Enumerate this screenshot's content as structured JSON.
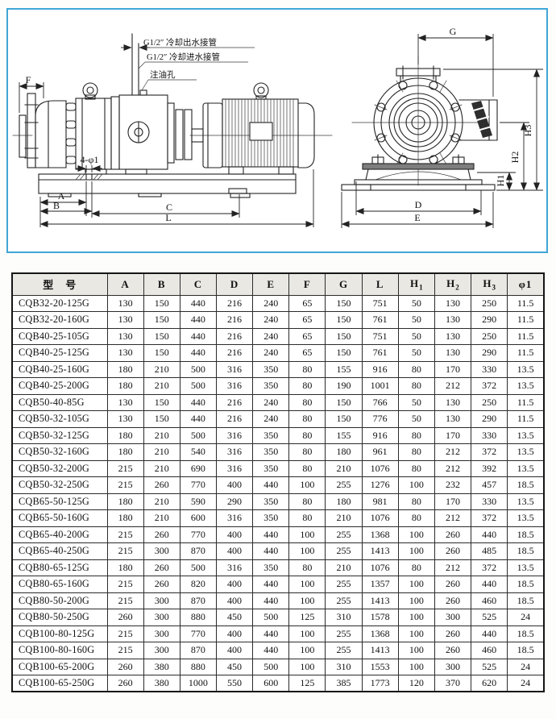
{
  "diagram": {
    "border_color": "#3fa6d6",
    "annotations": {
      "cooling_outlet": "G1/2″ 冷却出水接管",
      "cooling_inlet": "G1/2″ 冷却进水接管",
      "oil_fill_hole": "注油孔",
      "bolt_holes": "4-φ1"
    },
    "dims": {
      "f": "F",
      "a": "A",
      "b": "B",
      "c": "C",
      "l": "L",
      "g": "G",
      "d": "D",
      "e": "E",
      "h1": "H1",
      "h2": "H2",
      "h3": "H3"
    }
  },
  "table": {
    "headers": [
      {
        "text": "型　号"
      },
      {
        "text": "A"
      },
      {
        "text": "B"
      },
      {
        "text": "C"
      },
      {
        "text": "D"
      },
      {
        "text": "E"
      },
      {
        "text": "F"
      },
      {
        "text": "G"
      },
      {
        "text": "L"
      },
      {
        "text": "H",
        "sub": "1"
      },
      {
        "text": "H",
        "sub": "2"
      },
      {
        "text": "H",
        "sub": "3"
      },
      {
        "text": "φ1"
      }
    ],
    "rows": [
      [
        "CQB32-20-125G",
        130,
        150,
        440,
        216,
        240,
        65,
        150,
        751,
        50,
        130,
        250,
        11.5
      ],
      [
        "CQB32-20-160G",
        130,
        150,
        440,
        216,
        240,
        65,
        150,
        761,
        50,
        130,
        290,
        11.5
      ],
      [
        "CQB40-25-105G",
        130,
        150,
        440,
        216,
        240,
        65,
        150,
        751,
        50,
        130,
        250,
        11.5
      ],
      [
        "CQB40-25-125G",
        130,
        150,
        440,
        216,
        240,
        65,
        150,
        761,
        50,
        130,
        290,
        11.5
      ],
      [
        "CQB40-25-160G",
        180,
        210,
        500,
        316,
        350,
        80,
        155,
        916,
        80,
        170,
        330,
        13.5
      ],
      [
        "CQB40-25-200G",
        180,
        210,
        500,
        316,
        350,
        80,
        190,
        1001,
        80,
        212,
        372,
        13.5
      ],
      [
        "CQB50-40-85G",
        130,
        150,
        440,
        216,
        240,
        80,
        150,
        766,
        50,
        130,
        250,
        11.5
      ],
      [
        "CQB50-32-105G",
        130,
        150,
        440,
        216,
        240,
        80,
        150,
        776,
        50,
        130,
        290,
        11.5
      ],
      [
        "CQB50-32-125G",
        180,
        210,
        500,
        316,
        350,
        80,
        155,
        916,
        80,
        170,
        330,
        13.5
      ],
      [
        "CQB50-32-160G",
        180,
        210,
        540,
        316,
        350,
        80,
        180,
        961,
        80,
        212,
        372,
        13.5
      ],
      [
        "CQB50-32-200G",
        215,
        210,
        690,
        316,
        350,
        80,
        210,
        1076,
        80,
        212,
        392,
        13.5
      ],
      [
        "CQB50-32-250G",
        215,
        260,
        770,
        400,
        440,
        100,
        255,
        1276,
        100,
        232,
        457,
        18.5
      ],
      [
        "CQB65-50-125G",
        180,
        210,
        590,
        290,
        350,
        80,
        180,
        981,
        80,
        170,
        330,
        13.5
      ],
      [
        "CQB65-50-160G",
        180,
        210,
        600,
        316,
        350,
        80,
        210,
        1076,
        80,
        212,
        372,
        13.5
      ],
      [
        "CQB65-40-200G",
        215,
        260,
        770,
        400,
        440,
        100,
        255,
        1368,
        100,
        260,
        440,
        18.5
      ],
      [
        "CQB65-40-250G",
        215,
        300,
        870,
        400,
        440,
        100,
        255,
        1413,
        100,
        260,
        485,
        18.5
      ],
      [
        "CQB80-65-125G",
        180,
        260,
        500,
        316,
        350,
        80,
        210,
        1076,
        80,
        212,
        372,
        13.5
      ],
      [
        "CQB80-65-160G",
        215,
        260,
        820,
        400,
        440,
        100,
        255,
        1357,
        100,
        260,
        440,
        18.5
      ],
      [
        "CQB80-50-200G",
        215,
        300,
        870,
        400,
        440,
        100,
        255,
        1413,
        100,
        260,
        460,
        18.5
      ],
      [
        "CQB80-50-250G",
        260,
        300,
        880,
        450,
        500,
        125,
        310,
        1578,
        100,
        300,
        525,
        24
      ],
      [
        "CQB100-80-125G",
        215,
        300,
        770,
        400,
        440,
        100,
        255,
        1368,
        100,
        260,
        440,
        18.5
      ],
      [
        "CQB100-80-160G",
        215,
        300,
        870,
        400,
        440,
        100,
        255,
        1413,
        100,
        260,
        460,
        18.5
      ],
      [
        "CQB100-65-200G",
        260,
        380,
        880,
        450,
        500,
        100,
        310,
        1553,
        100,
        300,
        525,
        24
      ],
      [
        "CQB100-65-250G",
        260,
        380,
        1000,
        550,
        600,
        125,
        385,
        1773,
        120,
        370,
        620,
        24
      ]
    ]
  }
}
